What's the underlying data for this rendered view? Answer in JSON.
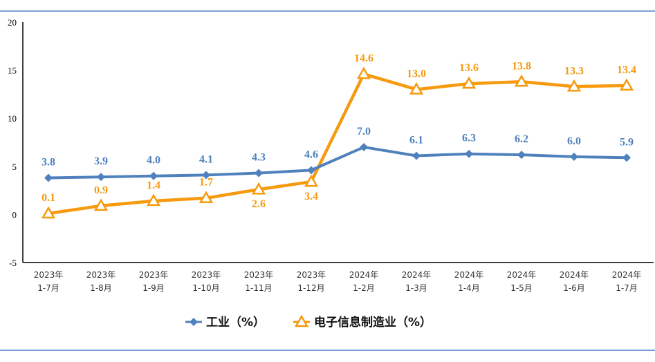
{
  "chart_data": {
    "type": "line",
    "categories": [
      [
        "2023年",
        "1-7月"
      ],
      [
        "2023年",
        "1-8月"
      ],
      [
        "2023年",
        "1-9月"
      ],
      [
        "2023年",
        "1-10月"
      ],
      [
        "2023年",
        "1-11月"
      ],
      [
        "2023年",
        "1-12月"
      ],
      [
        "2024年",
        "1-2月"
      ],
      [
        "2024年",
        "1-3月"
      ],
      [
        "2024年",
        "1-4月"
      ],
      [
        "2024年",
        "1-5月"
      ],
      [
        "2024年",
        "1-6月"
      ],
      [
        "2024年",
        "1-7月"
      ]
    ],
    "ylim": [
      -5,
      20
    ],
    "yticks": [
      "20",
      "15",
      "10",
      "5",
      "0",
      "-5"
    ],
    "series": [
      {
        "name": "工业（%）",
        "color": "#4F81BD",
        "marker": "diamond",
        "values": [
          3.8,
          3.9,
          4.0,
          4.1,
          4.3,
          4.6,
          7.0,
          6.1,
          6.3,
          6.2,
          6.0,
          5.9
        ],
        "labels": [
          "3.8",
          "3.9",
          "4.0",
          "4.1",
          "4.3",
          "4.6",
          "7.0",
          "6.1",
          "6.3",
          "6.2",
          "6.0",
          "5.9"
        ]
      },
      {
        "name": "电子信息制造业（%）",
        "color": "#F79A0E",
        "marker": "triangle",
        "values": [
          0.1,
          0.9,
          1.4,
          1.7,
          2.6,
          3.4,
          14.6,
          13.0,
          13.6,
          13.8,
          13.3,
          13.4
        ],
        "labels": [
          "0.1",
          "0.9",
          "1.4",
          "1.7",
          "2.6",
          "3.4",
          "14.6",
          "13.0",
          "13.6",
          "13.8",
          "13.3",
          "13.4"
        ]
      }
    ],
    "legend": "bottom-center",
    "grid": false
  }
}
